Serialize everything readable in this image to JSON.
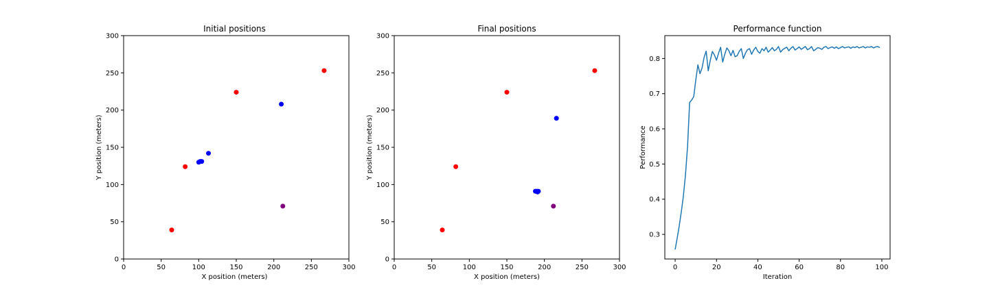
{
  "chart_data": [
    {
      "type": "scatter",
      "title": "Initial positions",
      "xlabel": "X position (meters)",
      "ylabel": "Y position (meters)",
      "xlim": [
        0,
        300
      ],
      "ylim": [
        0,
        300
      ],
      "xticks": [
        0,
        50,
        100,
        150,
        200,
        250,
        300
      ],
      "yticks": [
        0,
        50,
        100,
        150,
        200,
        250,
        300
      ],
      "grid": false,
      "series": [
        {
          "color": "#ff0000",
          "points": [
            [
              64,
              39
            ],
            [
              82,
              124
            ],
            [
              150,
              224
            ],
            [
              267,
              253
            ]
          ]
        },
        {
          "color": "#0000ff",
          "points": [
            [
              100,
              130
            ],
            [
              102,
              131
            ],
            [
              104,
              131
            ],
            [
              113,
              142
            ],
            [
              210,
              208
            ]
          ]
        },
        {
          "color": "#800080",
          "points": [
            [
              212,
              71
            ]
          ]
        }
      ]
    },
    {
      "type": "scatter",
      "title": "Final positions",
      "xlabel": "X position (meters)",
      "ylabel": "Y position (meters)",
      "xlim": [
        0,
        300
      ],
      "ylim": [
        0,
        300
      ],
      "xticks": [
        0,
        50,
        100,
        150,
        200,
        250,
        300
      ],
      "yticks": [
        0,
        50,
        100,
        150,
        200,
        250,
        300
      ],
      "grid": false,
      "series": [
        {
          "color": "#ff0000",
          "points": [
            [
              64,
              39
            ],
            [
              82,
              124
            ],
            [
              150,
              224
            ],
            [
              267,
              253
            ]
          ]
        },
        {
          "color": "#0000ff",
          "points": [
            [
              188,
              91
            ],
            [
              190,
              91
            ],
            [
              191,
              90
            ],
            [
              192,
              91
            ],
            [
              216,
              189
            ]
          ]
        },
        {
          "color": "#800080",
          "points": [
            [
              212,
              71
            ]
          ]
        }
      ]
    },
    {
      "type": "line",
      "title": "Performance function",
      "xlabel": "Iteration",
      "ylabel": "Performance",
      "xlim": [
        -5,
        104
      ],
      "ylim": [
        0.23,
        0.865
      ],
      "xticks": [
        0,
        20,
        40,
        60,
        80,
        100
      ],
      "yticks": [
        0.3,
        0.4,
        0.5,
        0.6,
        0.7,
        0.8
      ],
      "grid": false,
      "series": [
        {
          "color": "#1f77b4",
          "x": [
            0,
            1,
            2,
            3,
            4,
            5,
            6,
            7,
            8,
            9,
            10,
            11,
            12,
            13,
            14,
            15,
            16,
            17,
            18,
            19,
            20,
            21,
            22,
            23,
            24,
            25,
            26,
            27,
            28,
            29,
            30,
            31,
            32,
            33,
            34,
            35,
            36,
            37,
            38,
            39,
            40,
            41,
            42,
            43,
            44,
            45,
            46,
            47,
            48,
            49,
            50,
            51,
            52,
            53,
            54,
            55,
            56,
            57,
            58,
            59,
            60,
            61,
            62,
            63,
            64,
            65,
            66,
            67,
            68,
            69,
            70,
            71,
            72,
            73,
            74,
            75,
            76,
            77,
            78,
            79,
            80,
            81,
            82,
            83,
            84,
            85,
            86,
            87,
            88,
            89,
            90,
            91,
            92,
            93,
            94,
            95,
            96,
            97,
            98,
            99
          ],
          "y": [
            0.257,
            0.29,
            0.325,
            0.365,
            0.41,
            0.47,
            0.55,
            0.675,
            0.682,
            0.692,
            0.74,
            0.782,
            0.757,
            0.773,
            0.803,
            0.821,
            0.765,
            0.795,
            0.82,
            0.81,
            0.795,
            0.815,
            0.832,
            0.79,
            0.812,
            0.83,
            0.822,
            0.808,
            0.823,
            0.805,
            0.808,
            0.82,
            0.828,
            0.8,
            0.815,
            0.825,
            0.828,
            0.812,
            0.824,
            0.832,
            0.82,
            0.815,
            0.828,
            0.822,
            0.832,
            0.818,
            0.824,
            0.831,
            0.822,
            0.826,
            0.834,
            0.818,
            0.825,
            0.829,
            0.832,
            0.822,
            0.829,
            0.834,
            0.824,
            0.828,
            0.833,
            0.826,
            0.83,
            0.834,
            0.825,
            0.828,
            0.834,
            0.822,
            0.826,
            0.831,
            0.829,
            0.826,
            0.832,
            0.834,
            0.828,
            0.831,
            0.833,
            0.829,
            0.833,
            0.828,
            0.831,
            0.834,
            0.83,
            0.832,
            0.833,
            0.829,
            0.833,
            0.831,
            0.834,
            0.83,
            0.832,
            0.834,
            0.83,
            0.833,
            0.832,
            0.834,
            0.83,
            0.833,
            0.834,
            0.831
          ]
        }
      ]
    }
  ]
}
